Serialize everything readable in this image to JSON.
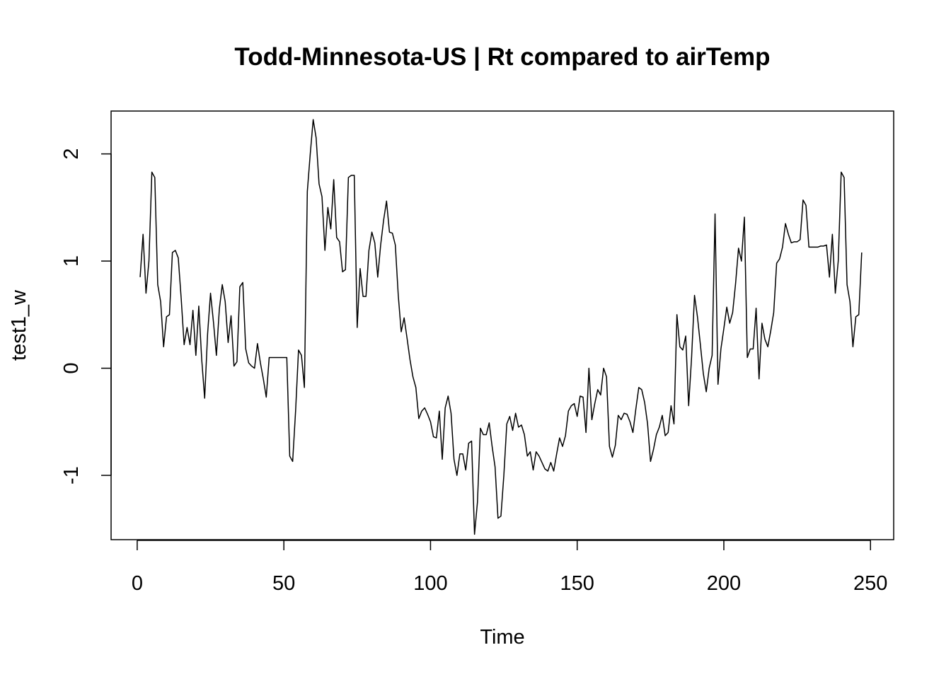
{
  "chart_data": {
    "type": "line",
    "title": "Todd-Minnesota-US | Rt compared to airTemp",
    "xlabel": "Time",
    "ylabel": "test1_w",
    "xlim": [
      -8.9,
      257.9
    ],
    "ylim": [
      -1.6,
      2.4
    ],
    "xticks": [
      0,
      50,
      100,
      150,
      200,
      250
    ],
    "yticks": [
      -1,
      0,
      1,
      2
    ],
    "xtick_labels": [
      "0",
      "50",
      "100",
      "150",
      "200",
      "250"
    ],
    "ytick_labels": [
      "-1",
      "0",
      "1",
      "2"
    ],
    "grid": false,
    "legend": "none",
    "series": [
      {
        "color": "#000000",
        "x_start": 1,
        "values": [
          0.85,
          1.25,
          0.7,
          1.0,
          1.83,
          1.78,
          0.78,
          0.62,
          0.2,
          0.48,
          0.5,
          1.08,
          1.1,
          1.03,
          0.65,
          0.22,
          0.38,
          0.22,
          0.54,
          0.12,
          0.58,
          0.08,
          -0.28,
          0.32,
          0.7,
          0.43,
          0.12,
          0.55,
          0.78,
          0.62,
          0.24,
          0.49,
          0.02,
          0.06,
          0.76,
          0.8,
          0.18,
          0.05,
          0.02,
          0.0,
          0.23,
          0.05,
          -0.1,
          -0.27,
          0.1,
          0.1,
          0.1,
          0.1,
          0.1,
          0.1,
          0.1,
          -0.82,
          -0.87,
          -0.4,
          0.17,
          0.12,
          -0.18,
          1.65,
          2.0,
          2.32,
          2.15,
          1.72,
          1.6,
          1.1,
          1.5,
          1.3,
          1.76,
          1.22,
          1.18,
          0.9,
          0.92,
          1.78,
          1.8,
          1.8,
          0.38,
          0.93,
          0.67,
          0.67,
          1.1,
          1.27,
          1.17,
          0.85,
          1.15,
          1.38,
          1.56,
          1.27,
          1.26,
          1.15,
          0.68,
          0.34,
          0.47,
          0.28,
          0.08,
          -0.08,
          -0.18,
          -0.47,
          -0.4,
          -0.37,
          -0.43,
          -0.5,
          -0.64,
          -0.65,
          -0.4,
          -0.85,
          -0.37,
          -0.26,
          -0.42,
          -0.85,
          -1.0,
          -0.8,
          -0.8,
          -0.95,
          -0.7,
          -0.68,
          -1.55,
          -1.25,
          -0.56,
          -0.62,
          -0.62,
          -0.51,
          -0.73,
          -0.92,
          -1.4,
          -1.38,
          -1.0,
          -0.52,
          -0.45,
          -0.58,
          -0.42,
          -0.55,
          -0.53,
          -0.62,
          -0.82,
          -0.78,
          -0.95,
          -0.78,
          -0.82,
          -0.88,
          -0.94,
          -0.96,
          -0.88,
          -0.96,
          -0.8,
          -0.65,
          -0.73,
          -0.63,
          -0.4,
          -0.35,
          -0.33,
          -0.45,
          -0.26,
          -0.27,
          -0.6,
          0.0,
          -0.48,
          -0.33,
          -0.2,
          -0.25,
          0.0,
          -0.08,
          -0.73,
          -0.83,
          -0.72,
          -0.44,
          -0.48,
          -0.42,
          -0.43,
          -0.5,
          -0.6,
          -0.38,
          -0.18,
          -0.2,
          -0.32,
          -0.52,
          -0.87,
          -0.76,
          -0.62,
          -0.55,
          -0.44,
          -0.63,
          -0.6,
          -0.35,
          -0.52,
          0.5,
          0.2,
          0.17,
          0.3,
          -0.35,
          0.1,
          0.68,
          0.48,
          0.22,
          -0.05,
          -0.22,
          0.0,
          0.12,
          1.44,
          -0.15,
          0.18,
          0.37,
          0.57,
          0.42,
          0.52,
          0.79,
          1.12,
          1.0,
          1.41,
          0.1,
          0.18,
          0.18,
          0.56,
          -0.1,
          0.42,
          0.27,
          0.2,
          0.35,
          0.52,
          0.98,
          1.02,
          1.13,
          1.35,
          1.25,
          1.17,
          1.18,
          1.18,
          1.2,
          1.57,
          1.52,
          1.13,
          1.13,
          1.13,
          1.13,
          1.14,
          1.14,
          1.15,
          0.85,
          1.25,
          0.7,
          1.0,
          1.83,
          1.78,
          0.78,
          0.62,
          0.2,
          0.48,
          0.5,
          1.08
        ]
      }
    ]
  }
}
